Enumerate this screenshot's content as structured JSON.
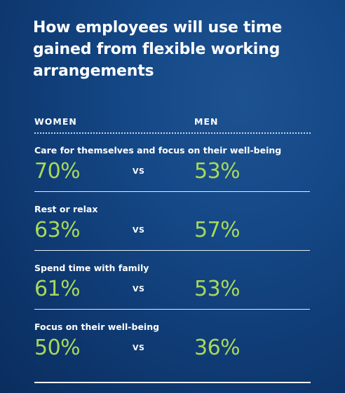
{
  "title": "How employees will use time gained from flexible working arrangements",
  "columns": {
    "women": "WOMEN",
    "men": "MEN"
  },
  "vs_label": "VS",
  "colors": {
    "background": "#144785",
    "value": "#a8d85a",
    "text": "#ffffff"
  },
  "chart_data": {
    "type": "table",
    "title": "How employees will use time gained from flexible working arrangements",
    "columns": [
      "WOMEN",
      "MEN"
    ],
    "rows": [
      {
        "label": "Care for themselves and focus on their well-being",
        "women": "70%",
        "men": "53%"
      },
      {
        "label": "Rest or relax",
        "women": "63%",
        "men": "57%"
      },
      {
        "label": "Spend time with family",
        "women": "61%",
        "men": "53%"
      },
      {
        "label": "Focus on their well-being",
        "women": "50%",
        "men": "36%"
      }
    ]
  }
}
